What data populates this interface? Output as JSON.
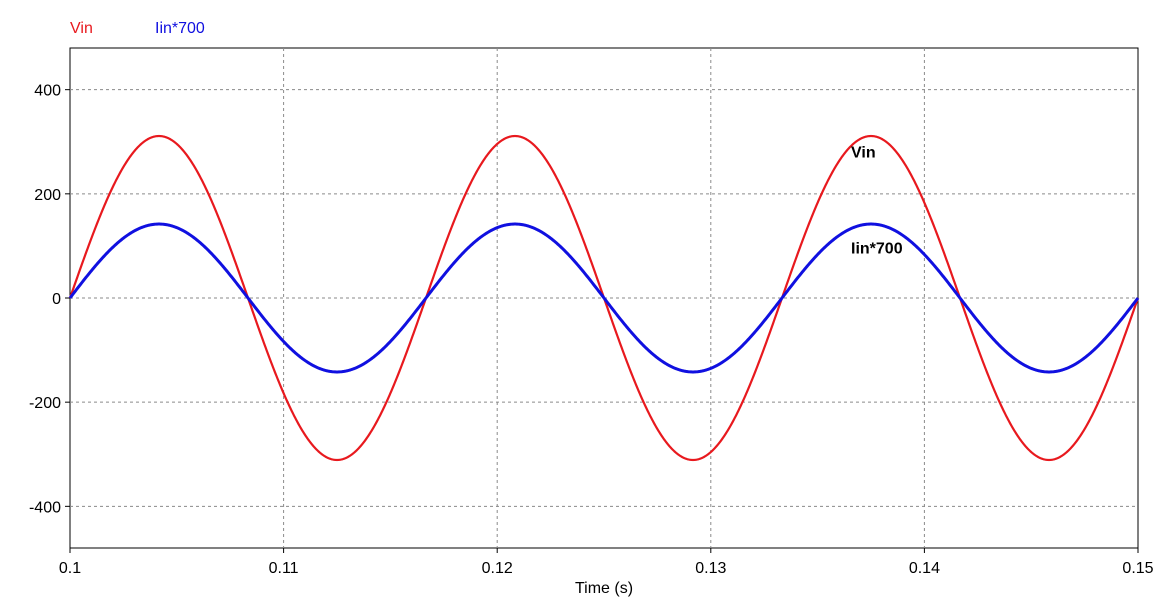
{
  "chart_data": {
    "type": "line",
    "xlabel": "Time (s)",
    "ylabel": "",
    "xlim": [
      0.1,
      0.15
    ],
    "ylim": [
      -480,
      480
    ],
    "xticks": [
      0.1,
      0.11,
      0.12,
      0.13,
      0.14,
      0.15
    ],
    "xtick_labels": [
      "0.1",
      "0.11",
      "0.12",
      "0.13",
      "0.14",
      "0.15"
    ],
    "yticks": [
      400,
      200,
      0,
      -200,
      -400
    ],
    "ytick_labels": [
      "400",
      "200",
      "0",
      "-200",
      "-400"
    ],
    "grid": true,
    "legend_position": "top-left",
    "series": [
      {
        "name": "Vin",
        "color": "#e8191e",
        "amplitude": 311,
        "frequency_hz": 60,
        "phase_zero_at": 0.1,
        "annotation": "Vin",
        "annotation_at": [
          0.1375,
          270
        ]
      },
      {
        "name": "Iin*700",
        "color": "#1010e0",
        "amplitude": 142,
        "frequency_hz": 60,
        "phase_zero_at": 0.1,
        "annotation": "Iin*700",
        "annotation_at": [
          0.1375,
          85
        ]
      }
    ]
  }
}
